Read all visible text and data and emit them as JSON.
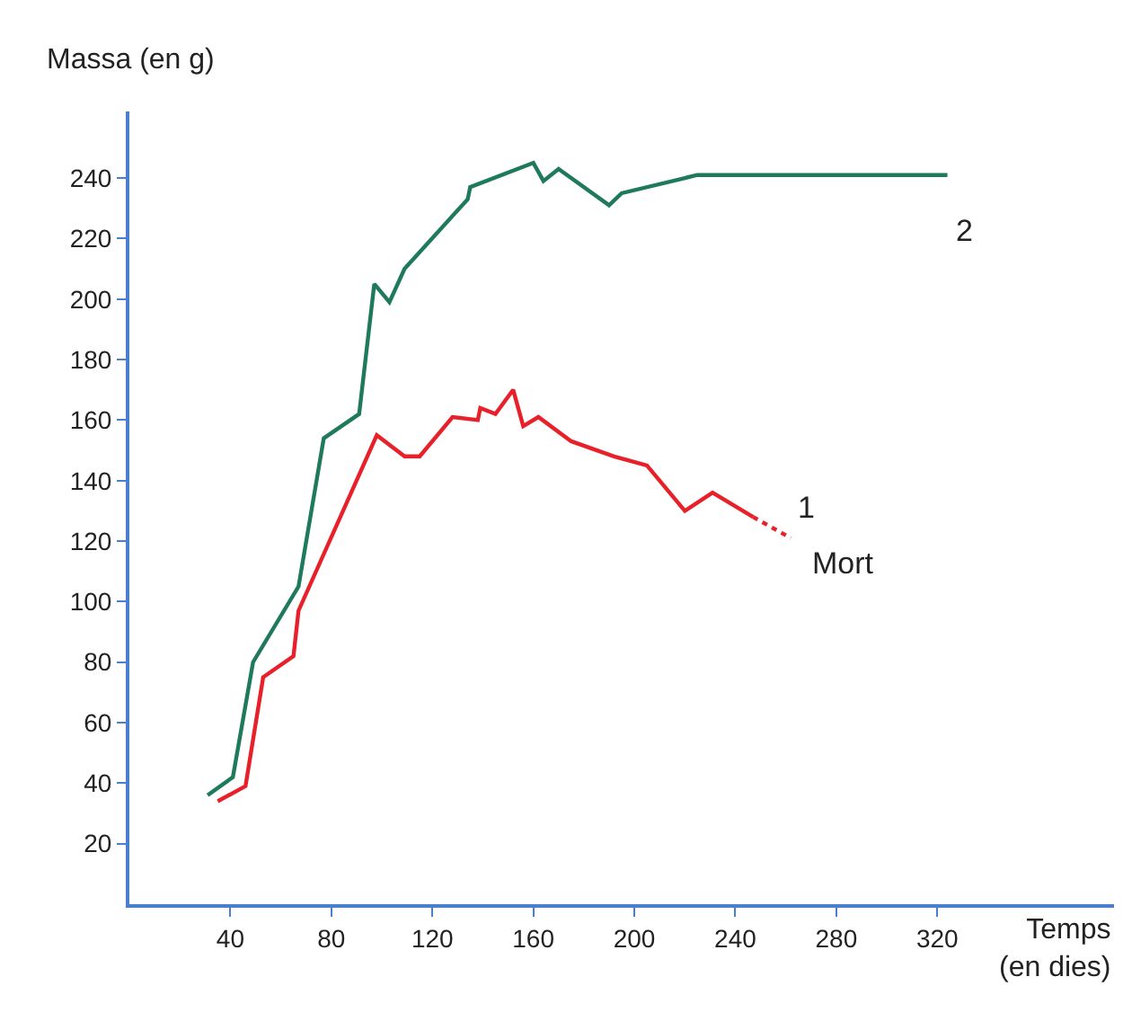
{
  "chart_data": {
    "type": "line",
    "xlabel": "Temps\n(en dies)",
    "ylabel": "Massa (en g)",
    "x": [
      31,
      41,
      49,
      67,
      77,
      91,
      97,
      103,
      109,
      134,
      135,
      160,
      164,
      170,
      190,
      195,
      225,
      324
    ],
    "series": [
      {
        "color": "#1f7a5c",
        "values": [
          36,
          42,
          80,
          105,
          154,
          162,
          205,
          199,
          210,
          233,
          237,
          245,
          239,
          243,
          231,
          235,
          241,
          241
        ]
      },
      {
        "color": "#e8202a",
        "x": [
          35,
          46,
          53,
          65,
          67,
          98,
          109,
          115,
          128,
          138,
          139,
          145,
          152,
          156,
          162,
          175,
          192,
          205,
          220,
          231,
          247
        ],
        "values": [
          34,
          39,
          75,
          82,
          97,
          155,
          148,
          148,
          161,
          160,
          164,
          162,
          170,
          158,
          161,
          153,
          148,
          145,
          130,
          136,
          128
        ]
      },
      {
        "color": "#e8202a",
        "x": [
          247,
          262
        ],
        "values": [
          128,
          121
        ],
        "line_style": "dotted"
      }
    ],
    "annotations": [
      "2",
      "1",
      "Mort"
    ],
    "xlim": [
      0,
      390
    ],
    "ylim": [
      0,
      262
    ],
    "xticks": [
      40,
      80,
      120,
      160,
      200,
      240,
      280,
      320
    ],
    "yticks": [
      20,
      40,
      60,
      80,
      100,
      120,
      140,
      160,
      180,
      200,
      220,
      240
    ],
    "marker": "none",
    "line_style": "solid"
  }
}
